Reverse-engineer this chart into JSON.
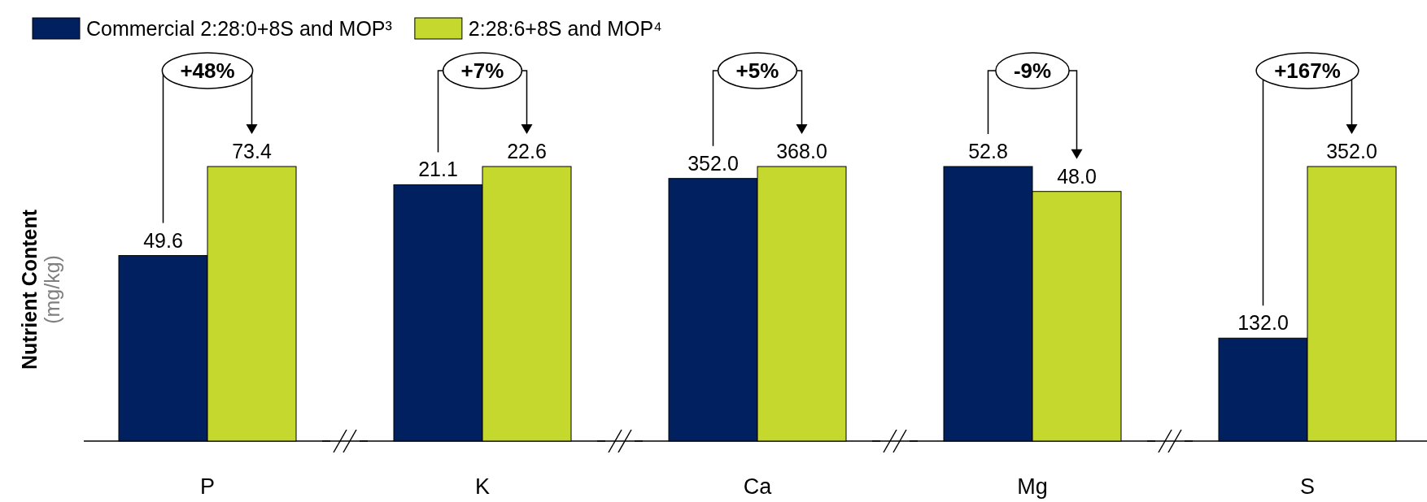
{
  "chart_data": [
    {
      "type": "bar",
      "categories": [
        "P"
      ],
      "ylabel": "Nutrient Content (mg/kg)",
      "legend": "top",
      "tick_labels": "x",
      "annotations": [
        "+48%"
      ],
      "series": [
        {
          "name": "Commercial 2:28:0+8S and MOP³",
          "color": "#002060",
          "values": [
            49.6
          ],
          "value_labels": [
            "49.6"
          ]
        },
        {
          "name": "2:28:6+8S and MOP⁴",
          "color": "#c4d82e",
          "values": [
            73.4
          ],
          "value_labels": [
            "73.4"
          ]
        }
      ]
    },
    {
      "type": "bar",
      "categories": [
        "K"
      ],
      "tick_labels": "x",
      "annotations": [
        "+7%"
      ],
      "series": [
        {
          "color": "#002060",
          "values": [
            21.1
          ],
          "value_labels": [
            "21.1"
          ]
        },
        {
          "color": "#c4d82e",
          "values": [
            22.6
          ],
          "value_labels": [
            "22.6"
          ]
        }
      ]
    },
    {
      "type": "bar",
      "categories": [
        "Ca"
      ],
      "tick_labels": "x",
      "annotations": [
        "+5%"
      ],
      "series": [
        {
          "color": "#002060",
          "values": [
            352.0
          ],
          "value_labels": [
            "352.0"
          ]
        },
        {
          "color": "#c4d82e",
          "values": [
            368.0
          ],
          "value_labels": [
            "368.0"
          ]
        }
      ]
    },
    {
      "type": "bar",
      "categories": [
        "Mg"
      ],
      "tick_labels": "x",
      "annotations": [
        "-9%"
      ],
      "series": [
        {
          "color": "#002060",
          "values": [
            52.8
          ],
          "value_labels": [
            "52.8"
          ]
        },
        {
          "color": "#c4d82e",
          "values": [
            48.0
          ],
          "value_labels": [
            "48.0"
          ]
        }
      ]
    },
    {
      "type": "bar",
      "categories": [
        "S"
      ],
      "tick_labels": "x",
      "annotations": [
        "+167%"
      ],
      "series": [
        {
          "color": "#002060",
          "values": [
            132.0
          ],
          "value_labels": [
            "132.0"
          ]
        },
        {
          "color": "#c4d82e",
          "values": [
            352.0
          ],
          "value_labels": [
            "352.0"
          ]
        }
      ]
    }
  ]
}
